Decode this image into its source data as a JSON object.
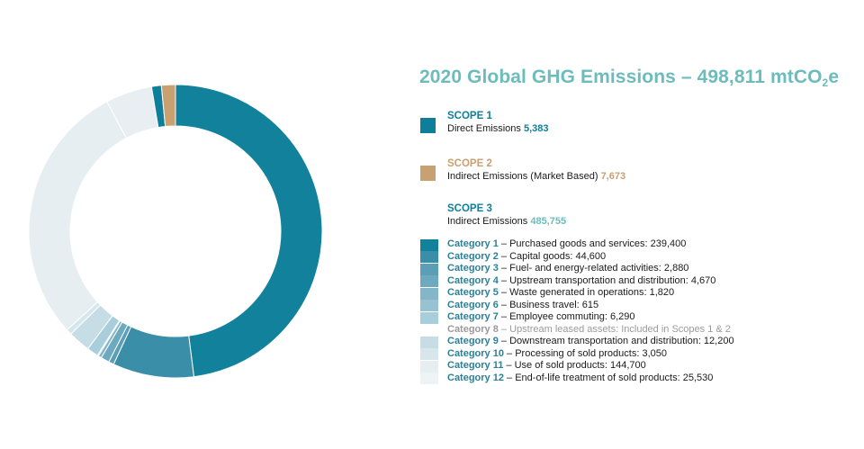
{
  "title": {
    "text": "2020 Global GHG Emissions – 498,811 mtCO",
    "sub": "2",
    "suffix": "e"
  },
  "scopes": [
    {
      "label": "SCOPE 1",
      "desc": "Direct Emissions",
      "value": "5,383",
      "color": "#0e7f9a",
      "value_color": "#0e7f9a"
    },
    {
      "label": "SCOPE 2",
      "desc": "Indirect Emissions (Market Based)",
      "value": "7,673",
      "color": "#c9a06f",
      "value_color": "#c9a06f"
    },
    {
      "label": "SCOPE 3",
      "desc": "Indirect Emissions",
      "value": "485,755",
      "color": null,
      "value_color": "#6cbcbc"
    }
  ],
  "categories": [
    {
      "name": "Category 1",
      "desc": "Purchased goods and services: 239,400",
      "color": "#11819c",
      "muted": false
    },
    {
      "name": "Category 2",
      "desc": "Capital goods: 44,600",
      "color": "#3a8ea7",
      "muted": false
    },
    {
      "name": "Category 3",
      "desc": "Fuel- and energy-related activities: 2,880",
      "color": "#5a9fb5",
      "muted": false
    },
    {
      "name": "Category 4",
      "desc": "Upstream transportation and distribution: 4,670",
      "color": "#6eaabf",
      "muted": false
    },
    {
      "name": "Category 5",
      "desc": "Waste generated in operations: 1,820",
      "color": "#82b6c8",
      "muted": false
    },
    {
      "name": "Category 6",
      "desc": "Business travel: 615",
      "color": "#96c2d2",
      "muted": false
    },
    {
      "name": "Category 7",
      "desc": "Employee commuting: 6,290",
      "color": "#a9cedb",
      "muted": false
    },
    {
      "name": "Category 8",
      "desc": "Upstream leased assets: Included in Scopes 1 & 2",
      "color": "#ffffff",
      "muted": true
    },
    {
      "name": "Category 9",
      "desc": "Downstream transportation and distribution: 12,200",
      "color": "#c6dde5",
      "muted": false
    },
    {
      "name": "Category 10",
      "desc": "Processing of sold products: 3,050",
      "color": "#d7e6ec",
      "muted": false
    },
    {
      "name": "Category 11",
      "desc": "Use of sold products: 144,700",
      "color": "#e6eef2",
      "muted": false
    },
    {
      "name": "Category 12",
      "desc": "End-of-life treatment of sold products: 25,530",
      "color": "#eef3f6",
      "muted": false
    }
  ],
  "chart_data": {
    "type": "pie",
    "title": "2020 Global GHG Emissions – 498,811 mtCO2e",
    "donut": true,
    "slices": [
      {
        "label": "Category 1",
        "value": 239400,
        "color": "#11819c"
      },
      {
        "label": "Category 2",
        "value": 44600,
        "color": "#3a8ea7"
      },
      {
        "label": "Category 3",
        "value": 2880,
        "color": "#5a9fb5"
      },
      {
        "label": "Category 4",
        "value": 4670,
        "color": "#6eaabf"
      },
      {
        "label": "Category 5",
        "value": 1820,
        "color": "#82b6c8"
      },
      {
        "label": "Category 6",
        "value": 615,
        "color": "#96c2d2"
      },
      {
        "label": "Category 7",
        "value": 6290,
        "color": "#a9cedb"
      },
      {
        "label": "Category 9",
        "value": 12200,
        "color": "#c6dde5"
      },
      {
        "label": "Category 10",
        "value": 3050,
        "color": "#d7e6ec"
      },
      {
        "label": "Category 11",
        "value": 144700,
        "color": "#e6eef2"
      },
      {
        "label": "Category 12",
        "value": 25530,
        "color": "#e9eef3"
      },
      {
        "label": "SCOPE 1",
        "value": 5383,
        "color": "#0e7f9a"
      },
      {
        "label": "SCOPE 2",
        "value": 7673,
        "color": "#c9a06f"
      }
    ]
  }
}
